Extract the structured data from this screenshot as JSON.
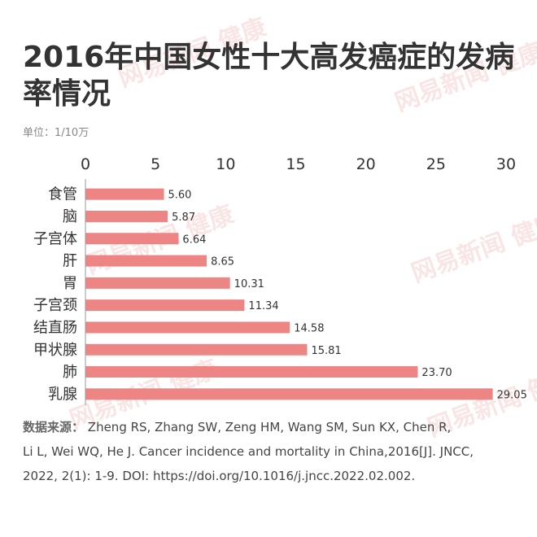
{
  "title": "2016年中国女性十大高发癌症的发病率情况",
  "unit": "单位：1/10万",
  "watermark": "网易新闻 健康",
  "colors": {
    "bar": "#ee8585",
    "text": "#333333",
    "axis": "#999999"
  },
  "source": {
    "prefix": "数据来源：",
    "line1": "Zheng RS, Zhang SW, Zeng HM, Wang SM, Sun KX, Chen R,",
    "line2": "Li L, Wei WQ, He J. Cancer incidence and mortality in China,2016[J]. JNCC,",
    "line3": "2022, 2(1): 1-9. DOI: https://doi.org/10.1016/j.jncc.2022.02.002."
  },
  "chart_data": {
    "type": "bar",
    "orientation": "horizontal",
    "title": "2016年中国女性十大高发癌症的发病率情况",
    "xlim": [
      0,
      30
    ],
    "x_ticks": [
      0,
      5,
      10,
      15,
      20,
      25,
      30
    ],
    "axis_position": "top",
    "grid": false,
    "categories": [
      "食管",
      "脑",
      "子宫体",
      "肝",
      "胃",
      "子宫颈",
      "结直肠",
      "甲状腺",
      "肺",
      "乳腺"
    ],
    "values": [
      5.6,
      5.87,
      6.64,
      8.65,
      10.31,
      11.34,
      14.58,
      15.81,
      23.7,
      29.05
    ],
    "value_labels": [
      "5.60",
      "5.87",
      "6.64",
      "8.65",
      "10.31",
      "11.34",
      "14.58",
      "15.81",
      "23.70",
      "29.05"
    ]
  }
}
